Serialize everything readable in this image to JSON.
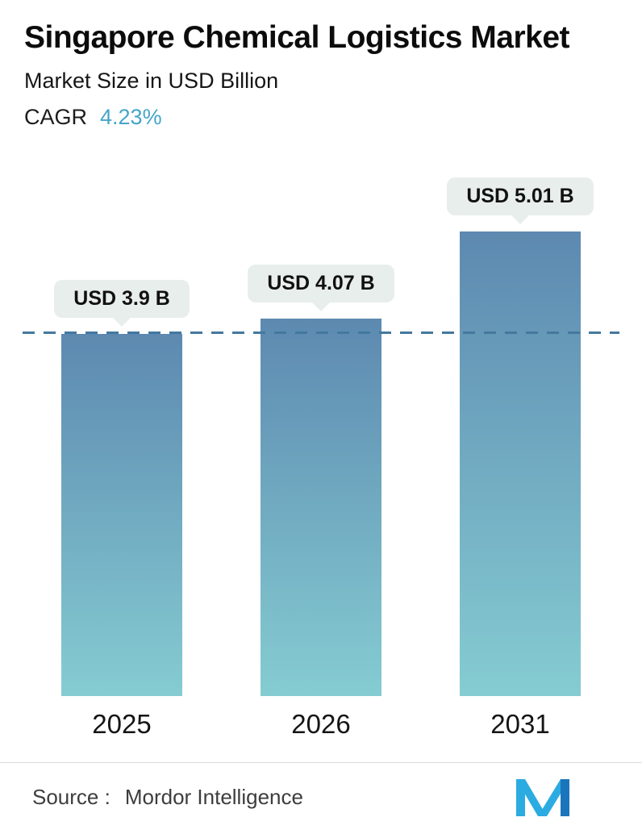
{
  "header": {
    "title": "Singapore Chemical Logistics Market",
    "subtitle": "Market Size in USD Billion",
    "cagr_label": "CAGR",
    "cagr_value": "4.23%"
  },
  "chart_data": {
    "type": "bar",
    "categories": [
      "2025",
      "2026",
      "2031"
    ],
    "values": [
      3.9,
      4.07,
      5.01
    ],
    "bar_labels": [
      "USD 3.9 B",
      "USD 4.07 B",
      "USD 5.01 B"
    ],
    "title": "Singapore Chemical Logistics Market",
    "xlabel": "",
    "ylabel": "Market Size in USD Billion",
    "ylim": [
      0,
      6
    ],
    "grid": false,
    "legend": false,
    "reference_line_value": 3.9,
    "reference_line_style": "dashed"
  },
  "footer": {
    "source_label": "Source :",
    "source_value": "Mordor Intelligence",
    "logo": "mordor-intelligence-logo"
  },
  "colors": {
    "accent": "#45a5c9",
    "bar_gradient_top": "#5d89b0",
    "bar_gradient_bottom": "#85ccd2",
    "label_pill_bg": "#e8eeec",
    "dashed_line": "#44789e",
    "divider": "#dcdcdc",
    "source_text": "#3d3d3d",
    "logo_light_blue": "#2babe1",
    "logo_dark_blue": "#1b75bc"
  }
}
